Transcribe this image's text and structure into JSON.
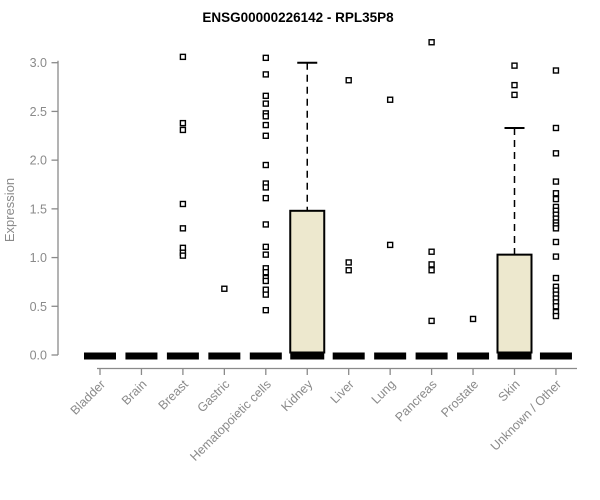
{
  "title": "ENSG00000226142 - RPL35P8",
  "chart_data": {
    "type": "boxplot",
    "title": "ENSG00000226142 - RPL35P8",
    "ylabel": "Expression",
    "xlabel": "",
    "ylim": [
      0,
      3.25
    ],
    "yticks": [
      "0.0",
      "0.5",
      "1.0",
      "1.5",
      "2.0",
      "2.5",
      "3.0"
    ],
    "ytick_values": [
      0,
      0.5,
      1.0,
      1.5,
      2.0,
      2.5,
      3.0
    ],
    "grid": false,
    "legend": "none",
    "colors": {
      "box_fill": "#ede8ce",
      "box_stroke": "#000000",
      "axis": "#8a8a8a",
      "outlier_fill": "#ffffff",
      "outlier_stroke": "#000000"
    },
    "categories": [
      "Bladder",
      "Brain",
      "Breast",
      "Gastric",
      "Hematopoietic cells",
      "Kidney",
      "Liver",
      "Lung",
      "Pancreas",
      "Prostate",
      "Skin",
      "Unknown / Other"
    ],
    "series": [
      {
        "category": "Bladder",
        "q1": 0,
        "median": 0,
        "q3": 0,
        "whisker_low": 0,
        "whisker_high": 0,
        "outliers": []
      },
      {
        "category": "Brain",
        "q1": 0,
        "median": 0,
        "q3": 0,
        "whisker_low": 0,
        "whisker_high": 0,
        "outliers": []
      },
      {
        "category": "Breast",
        "q1": 0,
        "median": 0,
        "q3": 0,
        "whisker_low": 0,
        "whisker_high": 0,
        "outliers": [
          3.06,
          2.38,
          2.31,
          1.55,
          1.3,
          1.1,
          1.05,
          1.02
        ]
      },
      {
        "category": "Gastric",
        "q1": 0,
        "median": 0,
        "q3": 0,
        "whisker_low": 0,
        "whisker_high": 0,
        "outliers": [
          0.68
        ]
      },
      {
        "category": "Hematopoietic cells",
        "q1": 0,
        "median": 0,
        "q3": 0,
        "whisker_low": 0,
        "whisker_high": 0,
        "outliers": [
          3.05,
          2.88,
          2.66,
          2.58,
          2.48,
          2.45,
          2.36,
          2.25,
          1.95,
          1.76,
          1.72,
          1.61,
          1.34,
          1.11,
          1.03,
          0.89,
          0.85,
          0.79,
          0.76,
          0.67,
          0.62,
          0.46
        ]
      },
      {
        "category": "Kidney",
        "q1": 0,
        "median": 0,
        "q3": 1.48,
        "whisker_low": 0,
        "whisker_high": 3.0,
        "outliers": []
      },
      {
        "category": "Liver",
        "q1": 0,
        "median": 0,
        "q3": 0,
        "whisker_low": 0,
        "whisker_high": 0,
        "outliers": [
          2.82,
          0.95,
          0.87
        ]
      },
      {
        "category": "Lung",
        "q1": 0,
        "median": 0,
        "q3": 0,
        "whisker_low": 0,
        "whisker_high": 0,
        "outliers": [
          2.62,
          1.13
        ]
      },
      {
        "category": "Pancreas",
        "q1": 0,
        "median": 0,
        "q3": 0,
        "whisker_low": 0,
        "whisker_high": 0,
        "outliers": [
          3.21,
          1.06,
          0.93,
          0.87,
          0.35
        ]
      },
      {
        "category": "Prostate",
        "q1": 0,
        "median": 0,
        "q3": 0,
        "whisker_low": 0,
        "whisker_high": 0,
        "outliers": [
          0.37
        ]
      },
      {
        "category": "Skin",
        "q1": 0,
        "median": 0,
        "q3": 1.03,
        "whisker_low": 0,
        "whisker_high": 2.33,
        "outliers": [
          2.97,
          2.77,
          2.67
        ]
      },
      {
        "category": "Unknown / Other",
        "q1": 0,
        "median": 0,
        "q3": 0,
        "whisker_low": 0,
        "whisker_high": 0,
        "outliers": [
          2.92,
          2.33,
          2.07,
          1.78,
          1.66,
          1.6,
          1.52,
          1.48,
          1.44,
          1.4,
          1.36,
          1.33,
          1.3,
          1.16,
          1.01,
          0.79,
          0.7,
          0.66,
          0.62,
          0.58,
          0.54,
          0.5,
          0.44,
          0.4
        ]
      }
    ]
  }
}
